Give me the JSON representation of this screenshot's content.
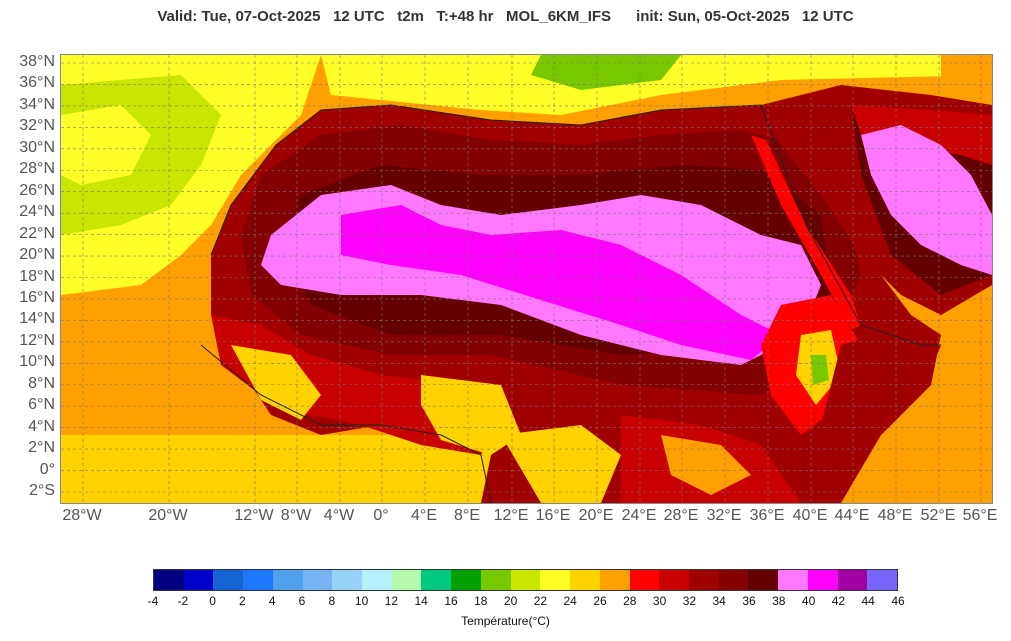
{
  "header": {
    "valid": "Valid: Tue, 07-Oct-2025   12 UTC",
    "param": "t2m",
    "step": "T:+48 hr",
    "model": "MOL_6KM_IFS",
    "init": "init: Sun, 05-Oct-2025   12 UTC"
  },
  "map": {
    "lat_labels": [
      "38°N",
      "36°N",
      "34°N",
      "32°N",
      "30°N",
      "28°N",
      "26°N",
      "24°N",
      "22°N",
      "20°N",
      "18°N",
      "16°N",
      "14°N",
      "12°N",
      "10°N",
      "8°N",
      "6°N",
      "4°N",
      "2°N",
      "0°",
      "2°S"
    ],
    "lon_labels": [
      "28°W",
      "20°W",
      "12°W",
      "8°W",
      "4°W",
      "0°",
      "4°E",
      "8°E",
      "12°E",
      "16°E",
      "20°E",
      "24°E",
      "28°E",
      "32°E",
      "36°E",
      "40°E",
      "44°E",
      "48°E",
      "52°E",
      "56°E"
    ]
  },
  "colorbar": {
    "ticks": [
      "-4",
      "-2",
      "0",
      "2",
      "4",
      "6",
      "8",
      "10",
      "12",
      "14",
      "16",
      "18",
      "20",
      "22",
      "24",
      "26",
      "28",
      "30",
      "32",
      "34",
      "36",
      "38",
      "40",
      "42",
      "44",
      "46"
    ],
    "colors": [
      "#000080",
      "#0000c8",
      "#1464d2",
      "#1e78ff",
      "#50a0f0",
      "#78b4f5",
      "#96d2fa",
      "#b4f0fa",
      "#b4faaa",
      "#00c880",
      "#00a000",
      "#78c800",
      "#c8e600",
      "#ffff28",
      "#ffd200",
      "#ffa000",
      "#ff0000",
      "#c80000",
      "#a00000",
      "#820000",
      "#640000",
      "#ff78ff",
      "#ff00ff",
      "#a000a0",
      "#7864ff"
    ],
    "label": "Température(°C)"
  }
}
